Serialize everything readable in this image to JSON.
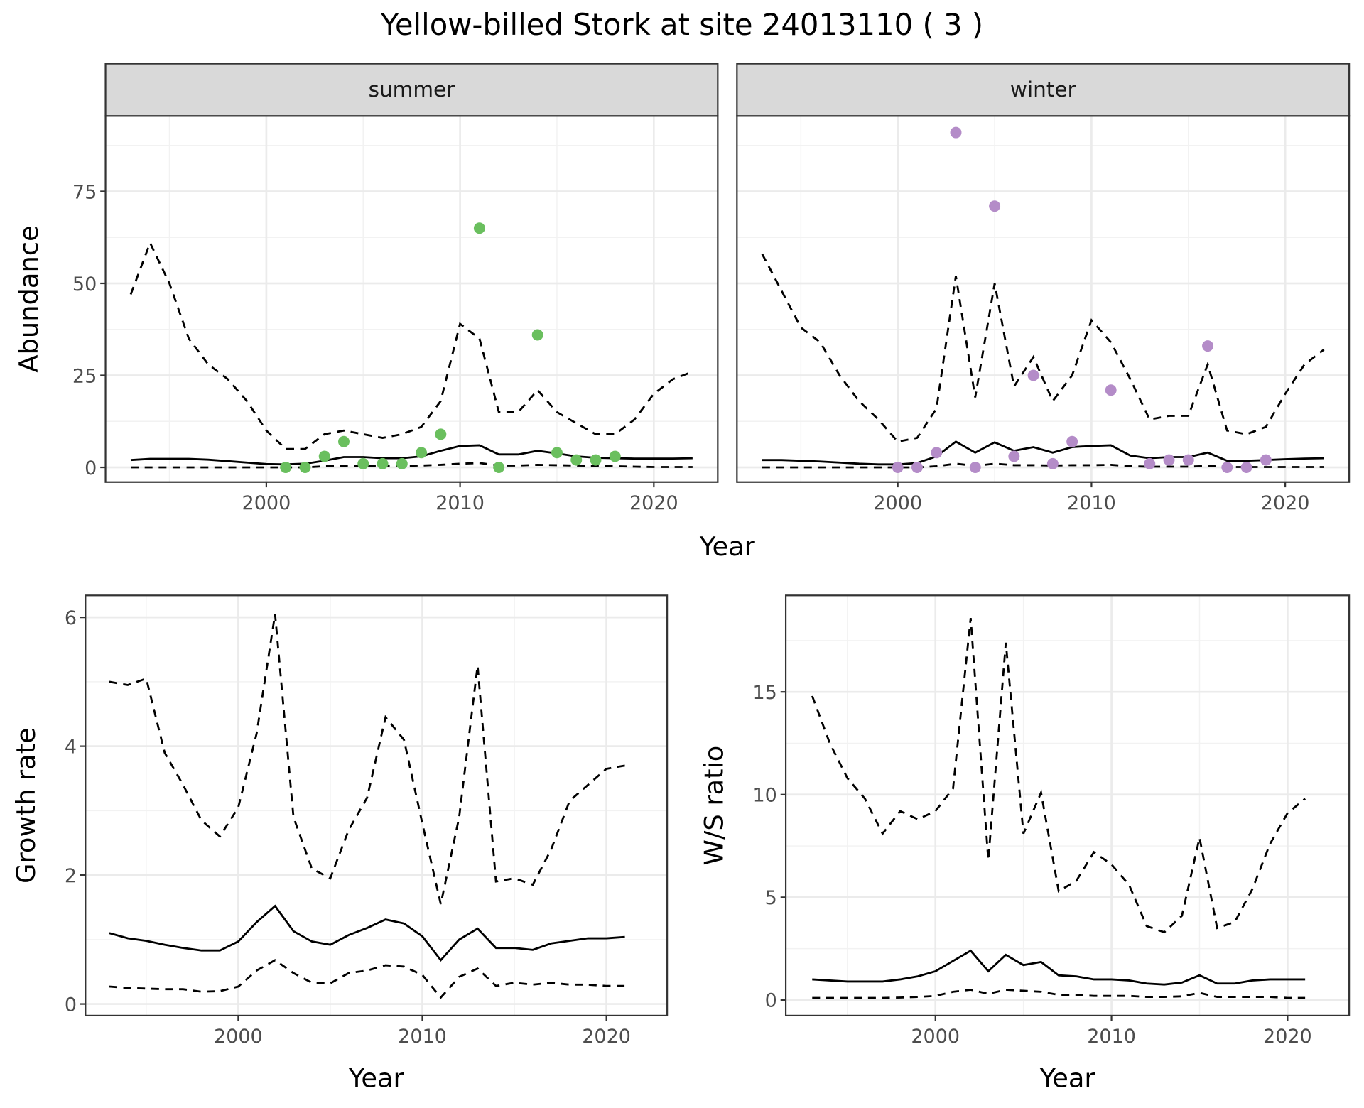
{
  "title": "Yellow-billed Stork at site 24013110 ( 3 )",
  "chart_data": [
    {
      "type": "line",
      "panel": "summer",
      "strip": "summer",
      "xlabel": "Year",
      "ylabel": "Abundance",
      "xlim": [
        1991.7,
        2023.3
      ],
      "ylim": [
        -4,
        95.5
      ],
      "xticks": [
        2000,
        2010,
        2020
      ],
      "yticks": [
        0,
        25,
        50,
        75
      ],
      "grid": true,
      "years": [
        1993,
        1994,
        1995,
        1996,
        1997,
        1998,
        1999,
        2000,
        2001,
        2002,
        2003,
        2004,
        2005,
        2006,
        2007,
        2008,
        2009,
        2010,
        2011,
        2012,
        2013,
        2014,
        2015,
        2016,
        2017,
        2018,
        2019,
        2020,
        2021,
        2022
      ],
      "median": [
        2,
        2.3,
        2.3,
        2.3,
        2.1,
        1.7,
        1.3,
        0.9,
        0.8,
        1,
        1.8,
        2.8,
        2.8,
        2.5,
        2.5,
        3,
        4.5,
        5.8,
        6,
        3.5,
        3.5,
        4.5,
        3.8,
        3,
        2.6,
        2.5,
        2.4,
        2.4,
        2.4,
        2.5
      ],
      "upper": [
        47,
        61,
        50,
        35,
        28,
        24,
        18,
        10,
        5,
        5,
        9,
        10,
        9,
        8,
        9,
        11,
        18,
        39,
        35,
        15,
        15,
        21,
        15,
        12,
        9,
        9,
        13,
        20,
        24,
        26
      ],
      "lower": [
        0,
        0,
        0,
        0,
        0,
        0,
        0,
        0,
        0,
        0,
        0.3,
        0.4,
        0.4,
        0.4,
        0.4,
        0.5,
        0.7,
        1,
        1.2,
        0.5,
        0.5,
        0.7,
        0.6,
        0.5,
        0.4,
        0.3,
        0.2,
        0.1,
        0.1,
        0.1
      ],
      "points": {
        "color": "#6abf5e",
        "x": [
          2001,
          2002,
          2003,
          2004,
          2005,
          2006,
          2007,
          2008,
          2009,
          2011,
          2012,
          2014,
          2015,
          2016,
          2017,
          2018
        ],
        "y": [
          0,
          0,
          3,
          7,
          1,
          1,
          1,
          4,
          9,
          65,
          0,
          36,
          4,
          2,
          2,
          3
        ]
      }
    },
    {
      "type": "line",
      "panel": "winter",
      "strip": "winter",
      "xlabel": "Year",
      "ylabel": "",
      "xlim": [
        1991.7,
        2023.3
      ],
      "ylim": [
        -4,
        95.5
      ],
      "xticks": [
        2000,
        2010,
        2020
      ],
      "yticks": [
        0,
        25,
        50,
        75
      ],
      "grid": true,
      "years": [
        1993,
        1994,
        1995,
        1996,
        1997,
        1998,
        1999,
        2000,
        2001,
        2002,
        2003,
        2004,
        2005,
        2006,
        2007,
        2008,
        2009,
        2010,
        2011,
        2012,
        2013,
        2014,
        2015,
        2016,
        2017,
        2018,
        2019,
        2020,
        2021,
        2022
      ],
      "median": [
        2,
        2,
        1.8,
        1.6,
        1.3,
        1,
        0.8,
        0.8,
        1.2,
        3,
        7,
        4,
        6.8,
        4.5,
        5.5,
        4,
        5.5,
        5.8,
        6,
        3.2,
        2.5,
        2.8,
        2.8,
        4,
        1.8,
        1.8,
        2,
        2.2,
        2.4,
        2.5
      ],
      "upper": [
        58,
        48,
        38,
        34,
        25,
        18,
        13,
        7,
        8,
        16,
        52,
        19,
        50,
        22,
        30,
        18,
        25,
        40,
        34,
        24,
        13,
        14,
        14,
        28,
        10,
        9,
        11,
        20,
        28,
        32
      ],
      "lower": [
        0,
        0,
        0,
        0,
        0,
        0,
        0,
        0,
        0,
        0.3,
        1,
        0.4,
        1,
        0.6,
        0.6,
        0.5,
        0.6,
        0.6,
        0.7,
        0.3,
        0.2,
        0.2,
        0.2,
        0.4,
        0.1,
        0.1,
        0.1,
        0.1,
        0.1,
        0.1
      ],
      "points": {
        "color": "#b48cc8",
        "x": [
          2000,
          2001,
          2002,
          2003,
          2004,
          2005,
          2006,
          2007,
          2008,
          2009,
          2011,
          2013,
          2014,
          2015,
          2016,
          2017,
          2018,
          2019
        ],
        "y": [
          0,
          0,
          4,
          91,
          0,
          71,
          3,
          25,
          1,
          7,
          21,
          1,
          2,
          2,
          33,
          0,
          0,
          2
        ]
      }
    },
    {
      "type": "line",
      "panel": "growth",
      "xlabel": "Year",
      "ylabel": "Growth rate",
      "xlim": [
        1991.7,
        2023.3
      ],
      "ylim": [
        -0.18,
        6.34
      ],
      "xticks": [
        2000,
        2010,
        2020
      ],
      "yticks": [
        0,
        2,
        4,
        6
      ],
      "grid": true,
      "years": [
        1993,
        1994,
        1995,
        1996,
        1997,
        1998,
        1999,
        2000,
        2001,
        2002,
        2003,
        2004,
        2005,
        2006,
        2007,
        2008,
        2009,
        2010,
        2011,
        2012,
        2013,
        2014,
        2015,
        2016,
        2017,
        2018,
        2019,
        2020,
        2021
      ],
      "median": [
        1.1,
        1.02,
        0.98,
        0.92,
        0.87,
        0.83,
        0.83,
        0.97,
        1.27,
        1.52,
        1.13,
        0.97,
        0.92,
        1.07,
        1.18,
        1.31,
        1.25,
        1.05,
        0.68,
        1,
        1.17,
        0.87,
        0.87,
        0.84,
        0.94,
        0.98,
        1.02,
        1.02,
        1.04
      ],
      "upper": [
        5,
        4.95,
        5.05,
        3.9,
        3.4,
        2.85,
        2.6,
        3.05,
        4.2,
        6.05,
        2.9,
        2.1,
        1.95,
        2.7,
        3.2,
        4.45,
        4.1,
        2.8,
        1.55,
        2.9,
        5.25,
        1.9,
        1.95,
        1.85,
        2.4,
        3.15,
        3.4,
        3.65,
        3.7
      ],
      "lower": [
        0.27,
        0.25,
        0.24,
        0.23,
        0.23,
        0.19,
        0.2,
        0.27,
        0.52,
        0.68,
        0.48,
        0.33,
        0.32,
        0.48,
        0.52,
        0.6,
        0.58,
        0.45,
        0.1,
        0.42,
        0.55,
        0.28,
        0.33,
        0.3,
        0.33,
        0.3,
        0.3,
        0.28,
        0.28
      ]
    },
    {
      "type": "line",
      "panel": "ws",
      "xlabel": "Year",
      "ylabel": "W/S ratio",
      "xlim": [
        1991.5,
        2023.5
      ],
      "ylim": [
        -0.76,
        19.7
      ],
      "xticks": [
        2000,
        2010,
        2020
      ],
      "yticks": [
        0,
        5,
        10,
        15
      ],
      "grid": true,
      "years": [
        1993,
        1994,
        1995,
        1996,
        1997,
        1998,
        1999,
        2000,
        2001,
        2002,
        2003,
        2004,
        2005,
        2006,
        2007,
        2008,
        2009,
        2010,
        2011,
        2012,
        2013,
        2014,
        2015,
        2016,
        2017,
        2018,
        2019,
        2020,
        2021
      ],
      "median": [
        1,
        0.95,
        0.9,
        0.9,
        0.9,
        1,
        1.15,
        1.4,
        1.9,
        2.4,
        1.4,
        2.2,
        1.7,
        1.85,
        1.2,
        1.15,
        1,
        1,
        0.95,
        0.8,
        0.75,
        0.85,
        1.2,
        0.8,
        0.8,
        0.95,
        1,
        1,
        1
      ],
      "upper": [
        14.8,
        12.5,
        10.8,
        9.8,
        8.1,
        9.2,
        8.8,
        9.2,
        10.3,
        18.6,
        6.8,
        17.4,
        8.1,
        10.1,
        5.3,
        5.8,
        7.2,
        6.6,
        5.6,
        3.6,
        3.3,
        4.1,
        7.9,
        3.5,
        3.8,
        5.4,
        7.6,
        9.1,
        9.8
      ],
      "lower": [
        0.1,
        0.1,
        0.1,
        0.1,
        0.1,
        0.12,
        0.15,
        0.2,
        0.4,
        0.5,
        0.3,
        0.5,
        0.45,
        0.4,
        0.25,
        0.25,
        0.2,
        0.2,
        0.2,
        0.15,
        0.15,
        0.18,
        0.35,
        0.15,
        0.15,
        0.15,
        0.15,
        0.1,
        0.1
      ]
    }
  ]
}
